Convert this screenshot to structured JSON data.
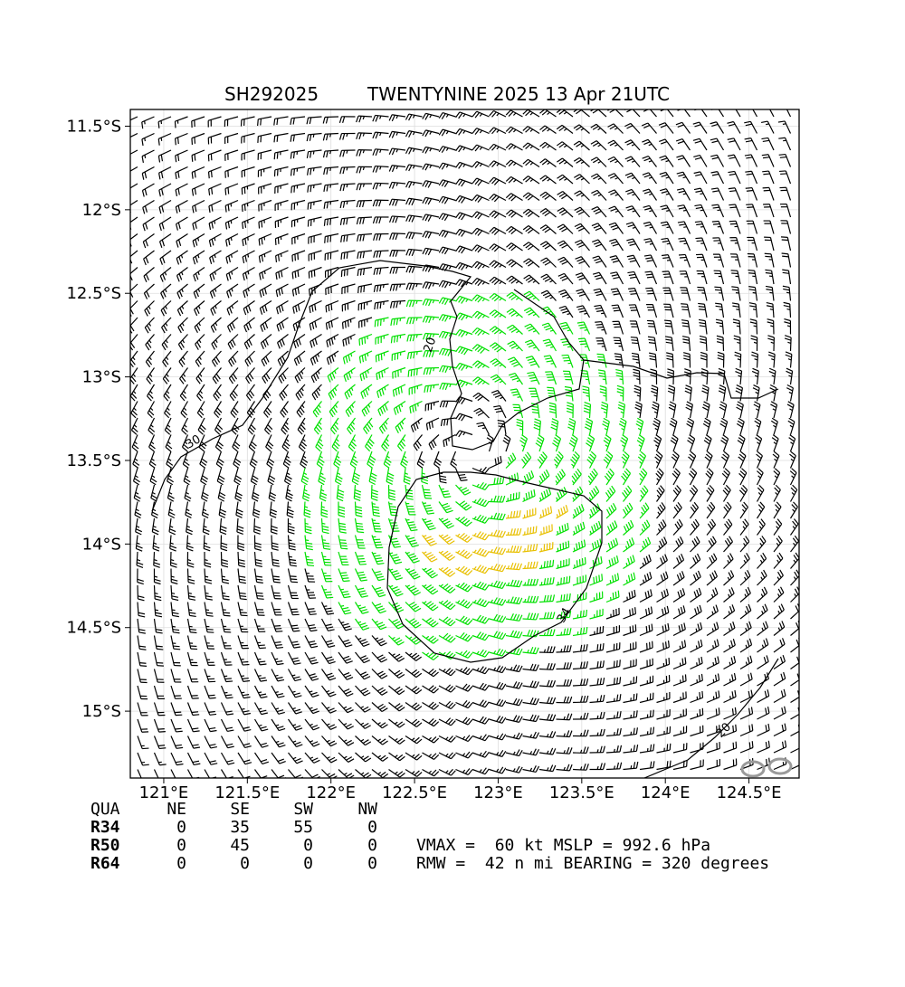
{
  "header": {
    "storm_id": "SH292025",
    "storm_title": "TWENTYNINE 2025 13 Apr 21UTC"
  },
  "chart_data": {
    "type": "wind-barb-map",
    "x_ticks": [
      "121°E",
      "121.5°E",
      "122°E",
      "122.5°E",
      "123°E",
      "123.5°E",
      "124°E",
      "124.5°E"
    ],
    "x_values": [
      121.0,
      121.5,
      122.0,
      122.5,
      123.0,
      123.5,
      124.0,
      124.5
    ],
    "y_ticks": [
      "11.5°S",
      "12°S",
      "12.5°S",
      "13°S",
      "13.5°S",
      "14°S",
      "14.5°S",
      "15°S"
    ],
    "y_values": [
      -11.5,
      -12.0,
      -12.5,
      -13.0,
      -13.5,
      -14.0,
      -14.5,
      -15.0
    ],
    "xlim": [
      120.8,
      124.8
    ],
    "ylim": [
      -15.4,
      -11.4
    ],
    "grid": true,
    "center": {
      "lon": 122.85,
      "lat": -13.45
    },
    "contours": [
      {
        "label": "20",
        "value": 20
      },
      {
        "label": "30",
        "value": 30
      },
      {
        "label": "34",
        "value": 34
      },
      {
        "label": "20",
        "value": 20
      }
    ],
    "colors": {
      "calm": "#000000",
      "gale": "#00e000",
      "storm": "#e8c000",
      "strong": "#e05000"
    },
    "wind_thresholds_kt": [
      34,
      50,
      64
    ]
  },
  "wind_radii": {
    "header": [
      "QUA",
      "NE",
      "SE",
      "SW",
      "NW"
    ],
    "rows": [
      {
        "label": "R34",
        "values": [
          "0",
          "35",
          "55",
          "0"
        ]
      },
      {
        "label": "R50",
        "values": [
          "0",
          "45",
          "0",
          "0"
        ]
      },
      {
        "label": "R64",
        "values": [
          "0",
          "0",
          "0",
          "0"
        ]
      }
    ]
  },
  "summary": {
    "line1": "VMAX =  60 kt MSLP = 992.6 hPa",
    "line2": "RMW =  42 n mi BEARING = 320 degrees"
  }
}
